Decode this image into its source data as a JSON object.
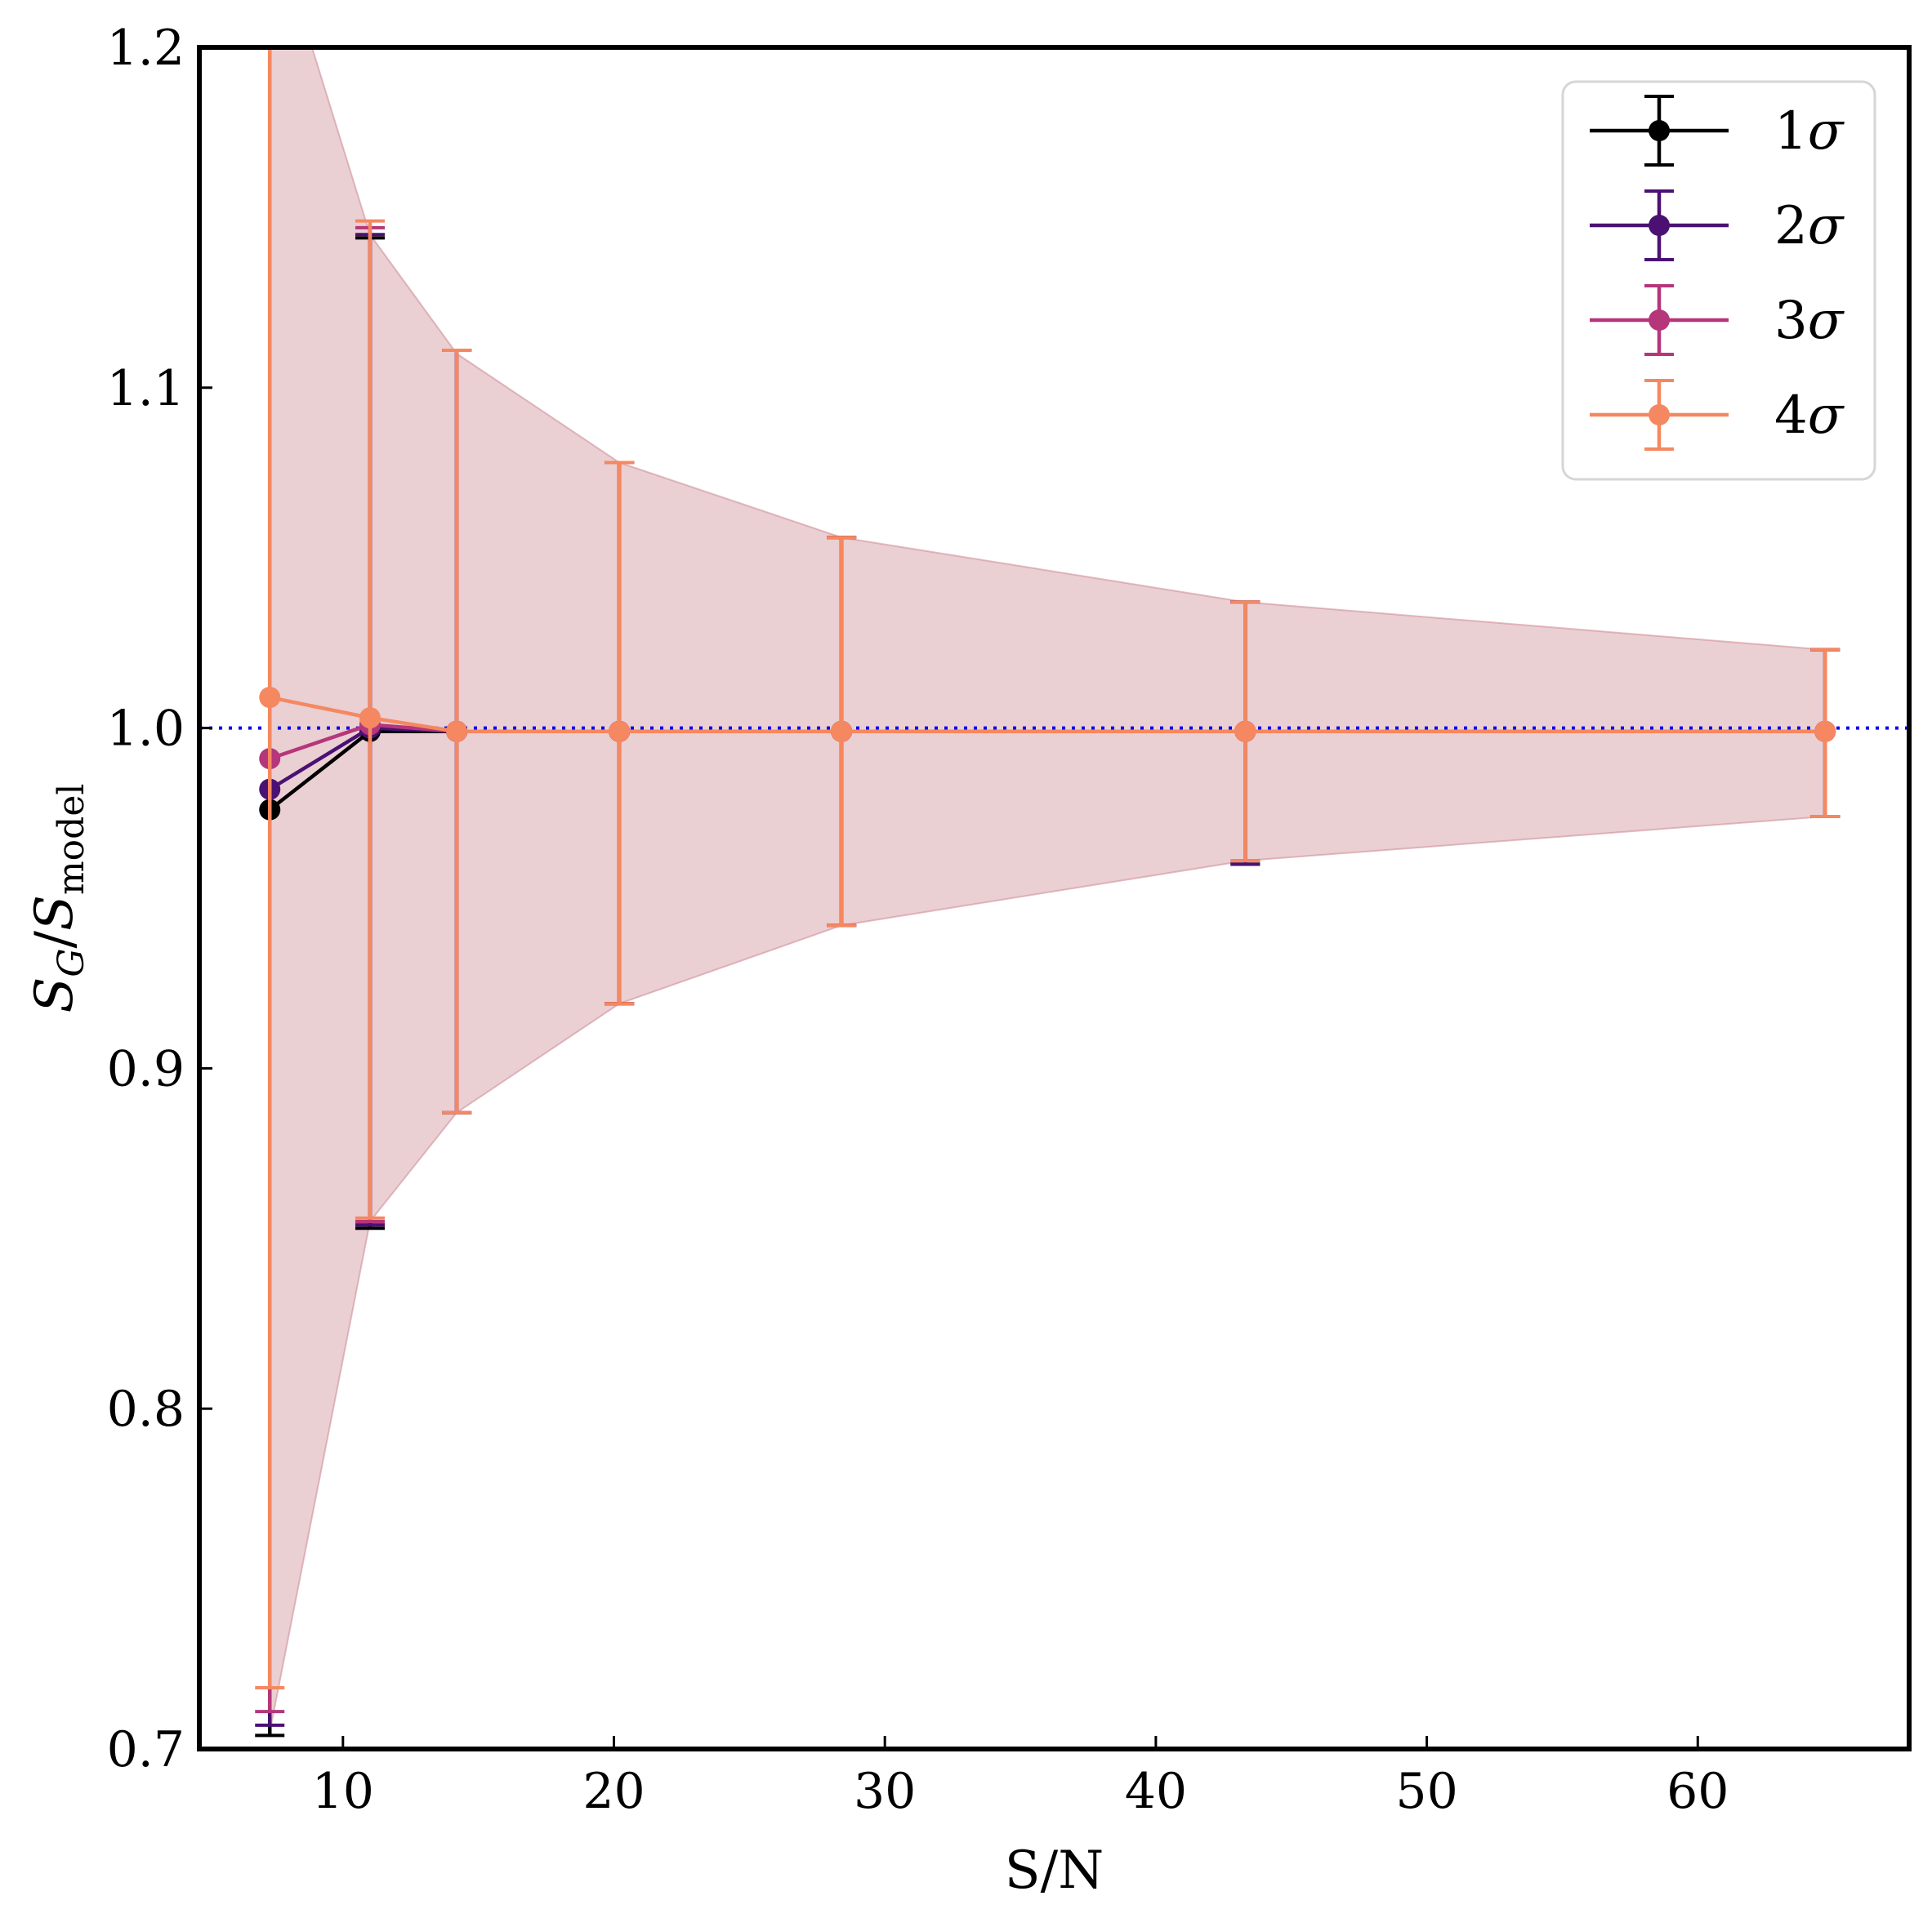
{
  "chart_data": {
    "type": "line",
    "xlabel": "S/N",
    "ylabel": "S_G/S_model",
    "ylabel_main": "S",
    "ylabel_sub1": "G",
    "ylabel_slash": "/",
    "ylabel_sub2": "model",
    "xlim": [
      4.7,
      67.8
    ],
    "ylim": [
      0.7,
      1.2
    ],
    "xticks": [
      10,
      20,
      30,
      40,
      50,
      60
    ],
    "xtick_labels": [
      "10",
      "20",
      "30",
      "40",
      "50",
      "60"
    ],
    "yticks": [
      0.7,
      0.8,
      0.9,
      1.0,
      1.1,
      1.2
    ],
    "ytick_labels": [
      "0.7",
      "0.8",
      "0.9",
      "1.0",
      "1.1",
      "1.2"
    ],
    "reference_line": {
      "y": 1.0,
      "color": "#0000ee",
      "style": "dotted"
    },
    "band": {
      "color": "#c9808c",
      "x": [
        7.3,
        11.0,
        14.2,
        20.2,
        28.4,
        43.3,
        64.7
      ],
      "lower": [
        0.705,
        0.855,
        0.887,
        0.919,
        0.942,
        0.961,
        0.974
      ],
      "upper": [
        1.24,
        1.145,
        1.11,
        1.078,
        1.056,
        1.037,
        1.023
      ]
    },
    "x": [
      7.3,
      11.0,
      14.2,
      20.2,
      28.4,
      43.3,
      64.7
    ],
    "series": [
      {
        "name": "1σ",
        "legend_num": "1",
        "legend_sym": "σ",
        "color": "#000000",
        "values": [
          0.976,
          0.999,
          0.999,
          0.999,
          0.999,
          0.999,
          0.999
        ],
        "err_low": [
          0.704,
          0.853,
          0.887,
          0.919,
          0.942,
          0.96,
          0.974
        ],
        "err_high": [
          1.36,
          1.144,
          1.111,
          1.078,
          1.056,
          1.037,
          1.023
        ]
      },
      {
        "name": "2σ",
        "legend_num": "2",
        "legend_sym": "σ",
        "color": "#4a1173",
        "values": [
          0.982,
          1.0,
          0.999,
          0.999,
          0.999,
          0.999,
          0.999
        ],
        "err_low": [
          0.707,
          0.854,
          0.887,
          0.919,
          0.942,
          0.96,
          0.974
        ],
        "err_high": [
          1.36,
          1.145,
          1.111,
          1.078,
          1.056,
          1.037,
          1.023
        ]
      },
      {
        "name": "3σ",
        "legend_num": "3",
        "legend_sym": "σ",
        "color": "#b5367a",
        "values": [
          0.991,
          1.001,
          0.999,
          0.999,
          0.999,
          0.999,
          0.999
        ],
        "err_low": [
          0.711,
          0.855,
          0.887,
          0.919,
          0.942,
          0.961,
          0.974
        ],
        "err_high": [
          1.36,
          1.147,
          1.111,
          1.078,
          1.056,
          1.037,
          1.023
        ]
      },
      {
        "name": "4σ",
        "legend_num": "4",
        "legend_sym": "σ",
        "color": "#f58860",
        "values": [
          1.009,
          1.003,
          0.999,
          0.999,
          0.999,
          0.999,
          0.999
        ],
        "err_low": [
          0.718,
          0.856,
          0.887,
          0.919,
          0.942,
          0.961,
          0.974
        ],
        "err_high": [
          1.36,
          1.149,
          1.111,
          1.078,
          1.056,
          1.037,
          1.023
        ]
      }
    ],
    "legend_position": "top-right",
    "grid": false
  }
}
